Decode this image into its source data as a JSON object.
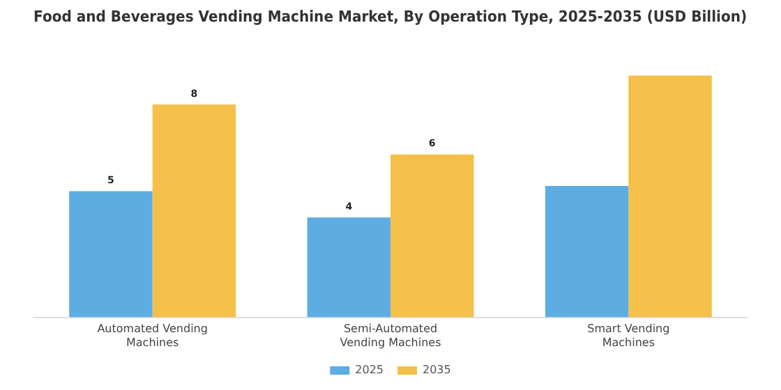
{
  "chart_data": {
    "type": "bar",
    "title": "Food and Beverages Vending Machine Market, By Operation Type, 2025-2035 (USD Billion)",
    "categories": [
      "Automated Vending Machines",
      "Semi-Automated Vending Machines",
      "Smart Vending Machines"
    ],
    "series": [
      {
        "name": "2025",
        "color": "#5dade2",
        "values": [
          4.8,
          3.8,
          5.0
        ],
        "value_labels": [
          "5",
          "4",
          null
        ]
      },
      {
        "name": "2035",
        "color": "#f5c04a",
        "values": [
          8.1,
          6.2,
          9.2
        ],
        "value_labels": [
          "8",
          "6",
          null
        ]
      }
    ],
    "legend": "bottom",
    "grid": false
  }
}
